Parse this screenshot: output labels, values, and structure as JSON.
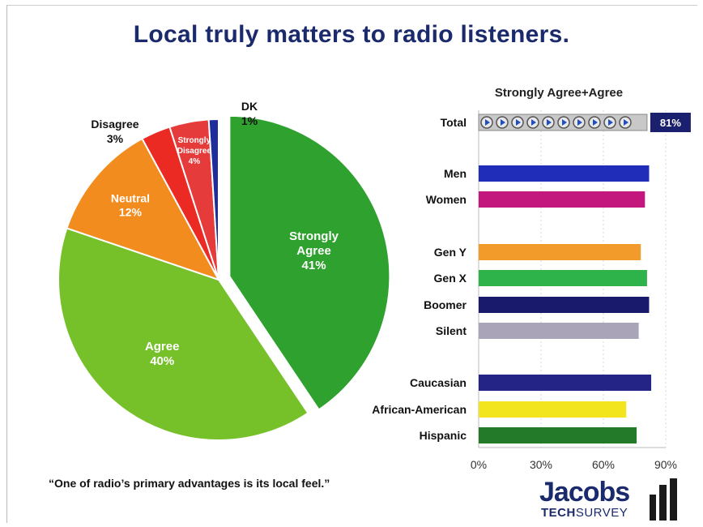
{
  "title": "Local truly matters to radio listeners.",
  "quote": "“One of radio’s primary advantages is its local feel.”",
  "logo": {
    "word": "Jacobs",
    "tech": "TECH",
    "survey": "SURVEY"
  },
  "chart_data": [
    {
      "type": "pie",
      "slices": [
        {
          "label": "Strongly Agree",
          "value": 41,
          "display": "41%",
          "color": "#2ea12e"
        },
        {
          "label": "Agree",
          "value": 40,
          "display": "40%",
          "color": "#76c12a"
        },
        {
          "label": "Neutral",
          "value": 12,
          "display": "12%",
          "color": "#f28c1e"
        },
        {
          "label": "Disagree",
          "value": 3,
          "display": "3%",
          "color": "#ec2a24"
        },
        {
          "label": "Strongly Disagree",
          "value": 4,
          "display": "4%",
          "color": "#e63b3b"
        },
        {
          "label": "DK",
          "value": 1,
          "display": "1%",
          "color": "#1f2d9c"
        }
      ]
    },
    {
      "type": "bar",
      "orientation": "horizontal",
      "title": "Strongly Agree+Agree",
      "xlim": [
        0,
        90
      ],
      "xticks": [
        "0%",
        "30%",
        "60%",
        "90%"
      ],
      "total_label": "81%",
      "bars": [
        {
          "category": "Total",
          "value": 81,
          "color": "#c8c8c8",
          "group": 0
        },
        {
          "category": "Men",
          "value": 82,
          "color": "#1f2db8",
          "group": 1
        },
        {
          "category": "Women",
          "value": 80,
          "color": "#c4177e",
          "group": 1
        },
        {
          "category": "Gen Y",
          "value": 78,
          "color": "#f29a2a",
          "group": 2
        },
        {
          "category": "Gen X",
          "value": 81,
          "color": "#2eb24a",
          "group": 2
        },
        {
          "category": "Boomer",
          "value": 82,
          "color": "#1a1a6c",
          "group": 2
        },
        {
          "category": "Silent",
          "value": 77,
          "color": "#a9a4b8",
          "group": 2
        },
        {
          "category": "Caucasian",
          "value": 83,
          "color": "#242486",
          "group": 3
        },
        {
          "category": "African-American",
          "value": 71,
          "color": "#f2e51e",
          "group": 3
        },
        {
          "category": "Hispanic",
          "value": 76,
          "color": "#237a28",
          "group": 3
        }
      ]
    }
  ]
}
